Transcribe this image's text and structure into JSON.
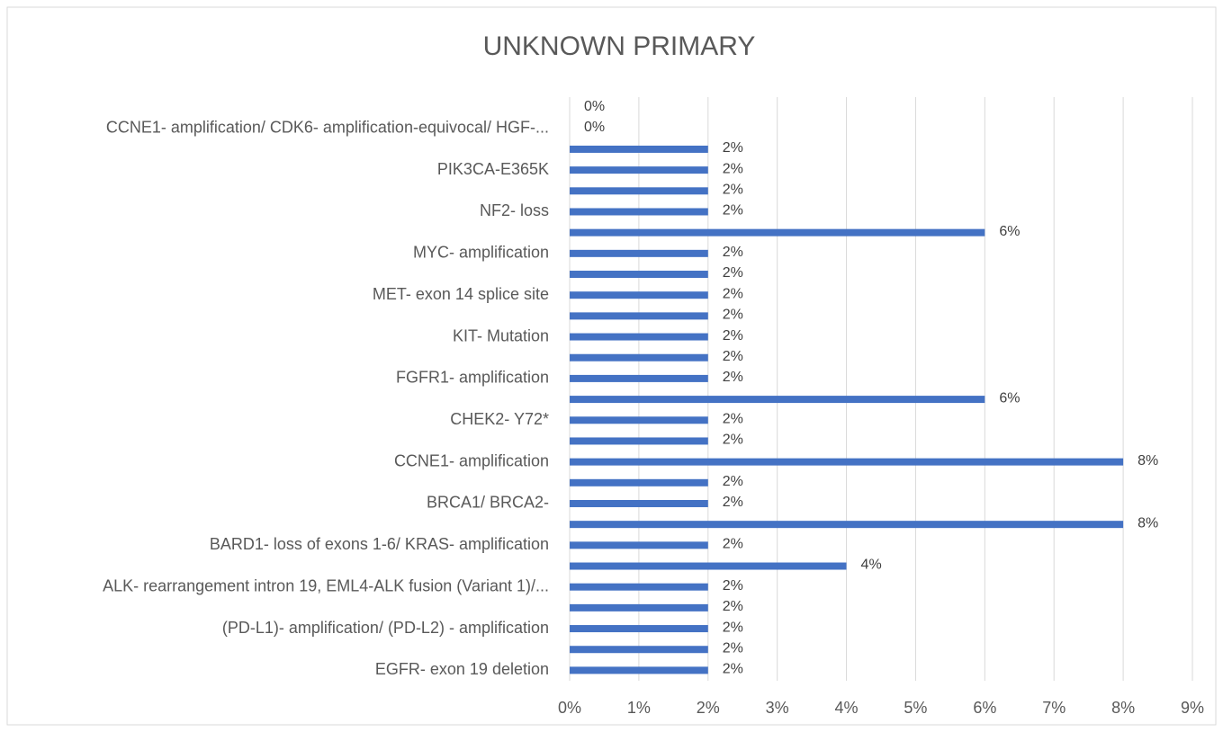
{
  "chart_data": {
    "type": "bar",
    "orientation": "horizontal",
    "title": "UNKNOWN PRIMARY",
    "categories": [
      null,
      "CCNE1- amplification/ CDK6- amplification-equivocal/ HGF-...",
      null,
      "PIK3CA-E365K",
      null,
      "NF2- loss",
      null,
      "MYC- amplification",
      null,
      "MET- exon 14 splice site",
      null,
      "KIT- Mutation",
      null,
      "FGFR1- amplification",
      null,
      "CHEK2- Y72*",
      null,
      "CCNE1- amplification",
      null,
      "BRCA1/ BRCA2-",
      null,
      "BARD1- loss of exons 1-6/ KRAS- amplification",
      null,
      "ALK- rearrangement intron 19, EML4-ALK fusion (Variant 1)/...",
      null,
      "(PD-L1)- amplification/ (PD-L2) - amplification",
      null,
      "EGFR- exon 19 deletion"
    ],
    "values": [
      0,
      0,
      2,
      2,
      2,
      2,
      6,
      2,
      2,
      2,
      2,
      2,
      2,
      2,
      6,
      2,
      2,
      8,
      2,
      2,
      8,
      2,
      4,
      2,
      2,
      2,
      2,
      2
    ],
    "value_labels": [
      "0%",
      "0%",
      "2%",
      "2%",
      "2%",
      "2%",
      "6%",
      "2%",
      "2%",
      "2%",
      "2%",
      "2%",
      "2%",
      "2%",
      "6%",
      "2%",
      "2%",
      "8%",
      "2%",
      "2%",
      "8%",
      "2%",
      "4%",
      "2%",
      "2%",
      "2%",
      "2%",
      "2%"
    ],
    "color": "#4472c4",
    "xlim": [
      0,
      9
    ],
    "xticks": [
      {
        "value": 0,
        "label": "0%"
      },
      {
        "value": 1,
        "label": "1%"
      },
      {
        "value": 2,
        "label": "2%"
      },
      {
        "value": 3,
        "label": "3%"
      },
      {
        "value": 4,
        "label": "4%"
      },
      {
        "value": 5,
        "label": "5%"
      },
      {
        "value": 6,
        "label": "6%"
      },
      {
        "value": 7,
        "label": "7%"
      },
      {
        "value": 8,
        "label": "8%"
      },
      {
        "value": 9,
        "label": "9%"
      }
    ],
    "grid": true
  }
}
